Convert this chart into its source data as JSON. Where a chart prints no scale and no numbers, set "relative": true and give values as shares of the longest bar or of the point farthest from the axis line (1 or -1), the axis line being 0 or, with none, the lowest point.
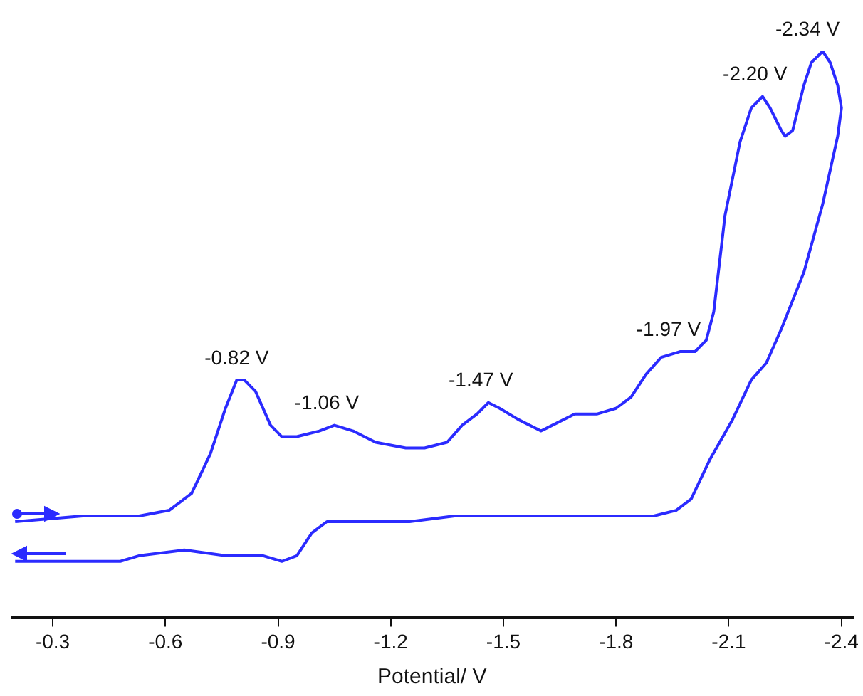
{
  "chart_data": {
    "type": "line",
    "relative": true,
    "xlabel": "Potential/ V",
    "xlim": [
      -0.19,
      -2.43
    ],
    "xticks": [
      {
        "value": -0.3,
        "label": "-0.3"
      },
      {
        "value": -0.6,
        "label": "-0.6"
      },
      {
        "value": -0.9,
        "label": "-0.9"
      },
      {
        "value": -1.2,
        "label": "-1.2"
      },
      {
        "value": -1.5,
        "label": "-1.5"
      },
      {
        "value": -1.8,
        "label": "-1.8"
      },
      {
        "value": -2.1,
        "label": "-2.1"
      },
      {
        "value": -2.4,
        "label": "-2.4"
      }
    ],
    "grid": false,
    "legend": false,
    "marker": "none",
    "line_style": "solid",
    "series": [
      {
        "color": "#2b2bff",
        "x": [
          -0.2,
          -0.38,
          -0.53,
          -0.61,
          -0.67,
          -0.72,
          -0.76,
          -0.79,
          -0.81,
          -0.84,
          -0.88,
          -0.91,
          -0.95,
          -1.01,
          -1.05,
          -1.1,
          -1.16,
          -1.24,
          -1.29,
          -1.35,
          -1.39,
          -1.43,
          -1.46,
          -1.49,
          -1.54,
          -1.6,
          -1.63,
          -1.69,
          -1.75,
          -1.8,
          -1.84,
          -1.88,
          -1.92,
          -1.97,
          -2.01,
          -2.04,
          -2.06,
          -2.09,
          -2.13,
          -2.16,
          -2.19,
          -2.21,
          -2.24,
          -2.25,
          -2.27,
          -2.3,
          -2.32,
          -2.35,
          -2.37,
          -2.39,
          -2.4,
          -2.39,
          -2.35,
          -2.3,
          -2.24,
          -2.2,
          -2.16,
          -2.11,
          -2.05,
          -2.0,
          -1.96,
          -1.9,
          -1.79,
          -1.67,
          -1.48,
          -1.37,
          -1.25,
          -1.1,
          -1.03,
          -0.99,
          -0.95,
          -0.91,
          -0.86,
          -0.76,
          -0.65,
          -0.53,
          -0.48,
          -0.42,
          -0.35,
          -0.2
        ],
        "values": [
          0.17,
          0.18,
          0.18,
          0.19,
          0.22,
          0.29,
          0.37,
          0.42,
          0.42,
          0.4,
          0.34,
          0.32,
          0.32,
          0.33,
          0.34,
          0.33,
          0.31,
          0.3,
          0.3,
          0.31,
          0.34,
          0.36,
          0.38,
          0.37,
          0.35,
          0.33,
          0.34,
          0.36,
          0.36,
          0.37,
          0.39,
          0.43,
          0.46,
          0.47,
          0.47,
          0.49,
          0.54,
          0.71,
          0.84,
          0.9,
          0.92,
          0.9,
          0.86,
          0.85,
          0.86,
          0.94,
          0.98,
          1.0,
          0.98,
          0.94,
          0.9,
          0.85,
          0.73,
          0.61,
          0.51,
          0.45,
          0.42,
          0.35,
          0.28,
          0.21,
          0.19,
          0.18,
          0.18,
          0.18,
          0.18,
          0.18,
          0.17,
          0.17,
          0.17,
          0.15,
          0.11,
          0.1,
          0.11,
          0.11,
          0.12,
          0.11,
          0.1,
          0.1,
          0.1,
          0.1
        ]
      }
    ],
    "annotations": [
      {
        "text": "-0.82 V",
        "x": -0.82,
        "y": 0.42
      },
      {
        "text": "-1.06 V",
        "x": -1.06,
        "y": 0.34
      },
      {
        "text": "-1.47 V",
        "x": -1.47,
        "y": 0.38
      },
      {
        "text": "-1.97 V",
        "x": -1.97,
        "y": 0.47
      },
      {
        "text": "-2.20 V",
        "x": -2.2,
        "y": 0.92
      },
      {
        "text": "-2.34 V",
        "x": -2.34,
        "y": 1.0
      }
    ]
  }
}
